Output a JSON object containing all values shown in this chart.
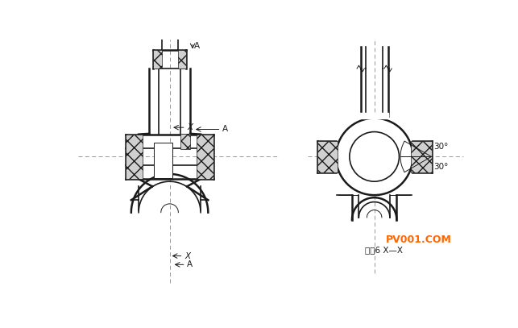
{
  "bg_color": "#ffffff",
  "line_color": "#1a1a1a",
  "center_line_color": "#888888",
  "watermark_text": "PV001.COM",
  "watermark_color": "#ff6600",
  "title_text": "剖覙6 X—X",
  "angle_label": "30°",
  "figw": 6.43,
  "figh": 4.07,
  "dpi": 100
}
